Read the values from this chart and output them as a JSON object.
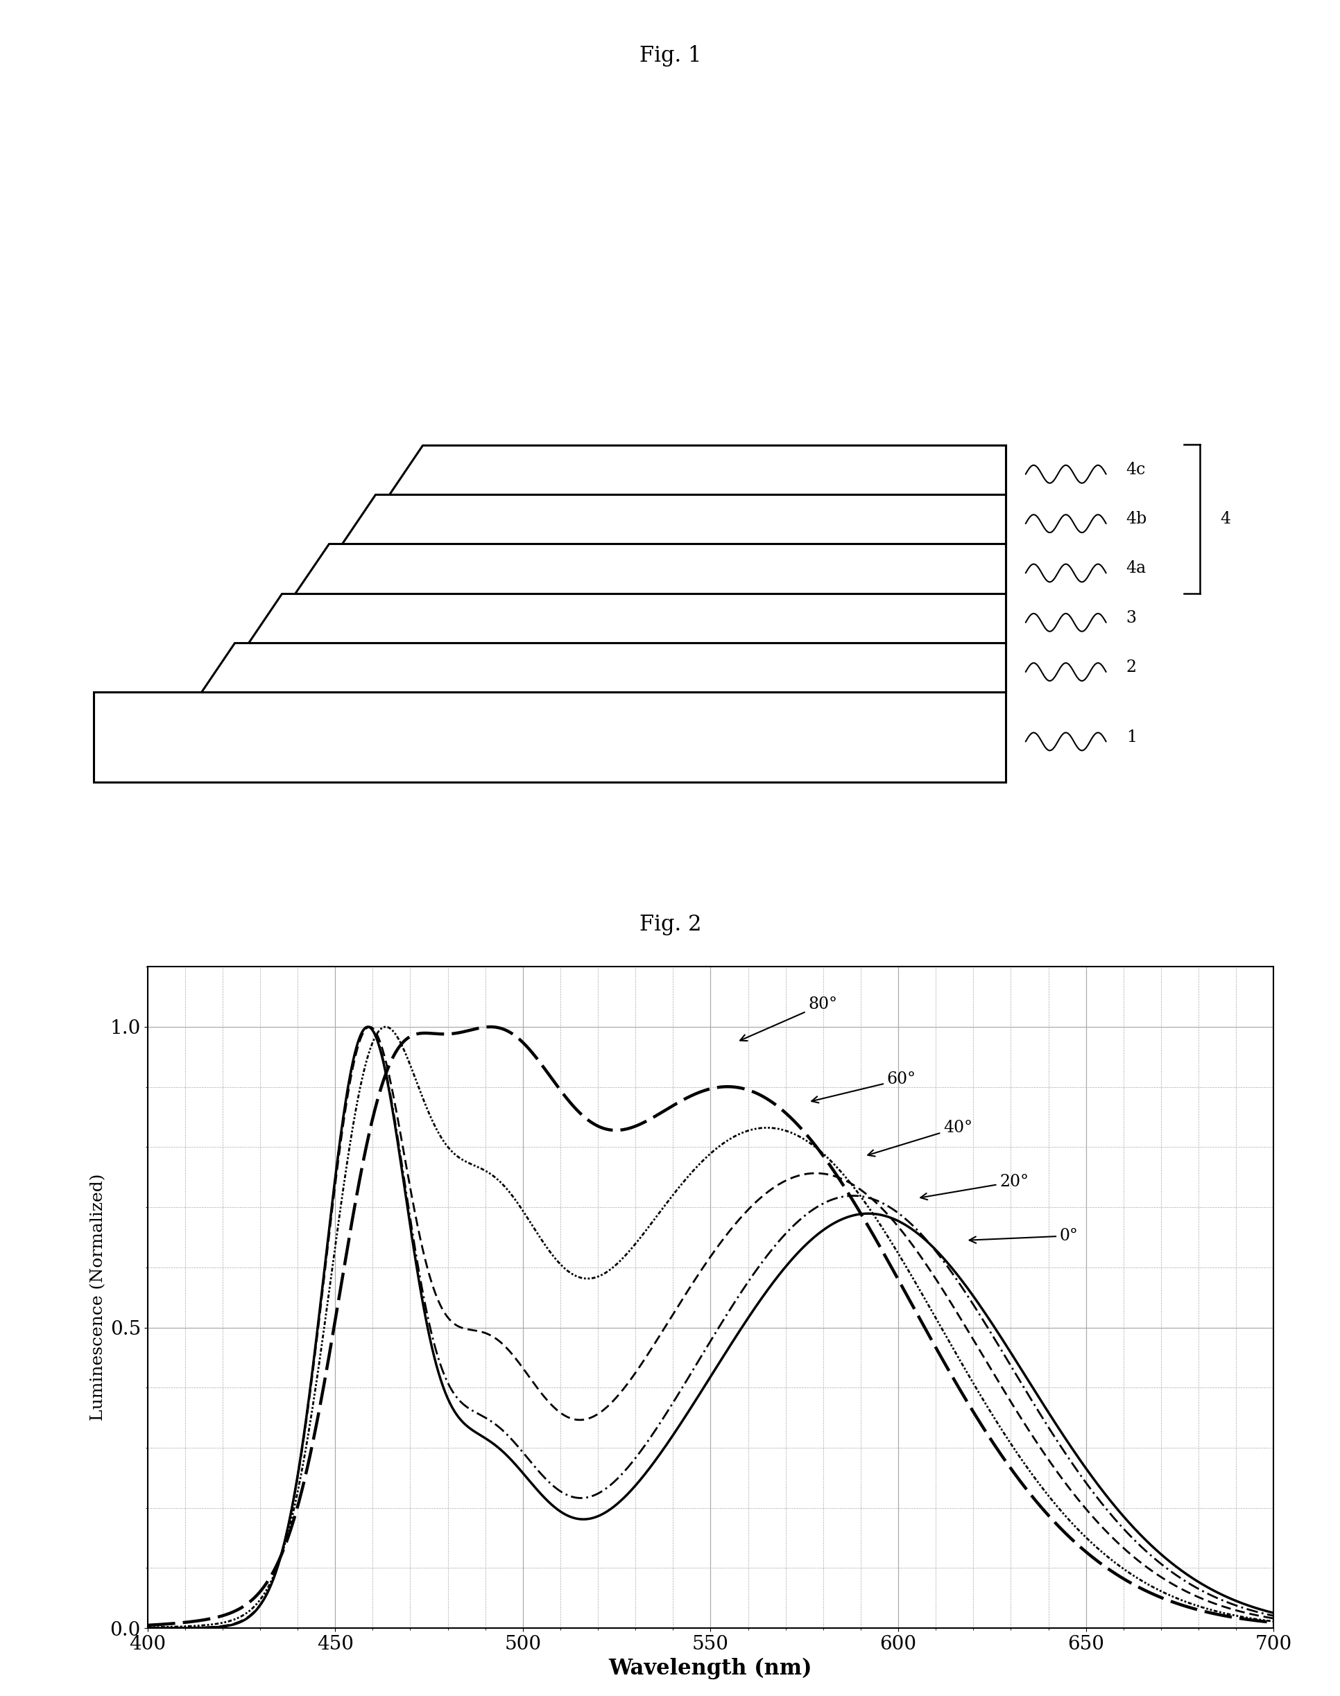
{
  "fig1_title": "Fig. 1",
  "fig2_title": "Fig. 2",
  "fig2_xlabel": "Wavelength (nm)",
  "fig2_ylabel": "Luminescence (Normalized)",
  "fig2_xlim": [
    400,
    700
  ],
  "fig2_ylim": [
    0.0,
    1.1
  ],
  "fig2_yticks": [
    0.0,
    0.5,
    1.0
  ],
  "fig2_ytick_labels": [
    "0.0",
    "0.5",
    "1.0"
  ],
  "fig2_xticks": [
    400,
    450,
    500,
    550,
    600,
    650,
    700
  ],
  "background_color": "#ffffff",
  "line_color": "#000000",
  "grid_color": "#aaaaaa"
}
